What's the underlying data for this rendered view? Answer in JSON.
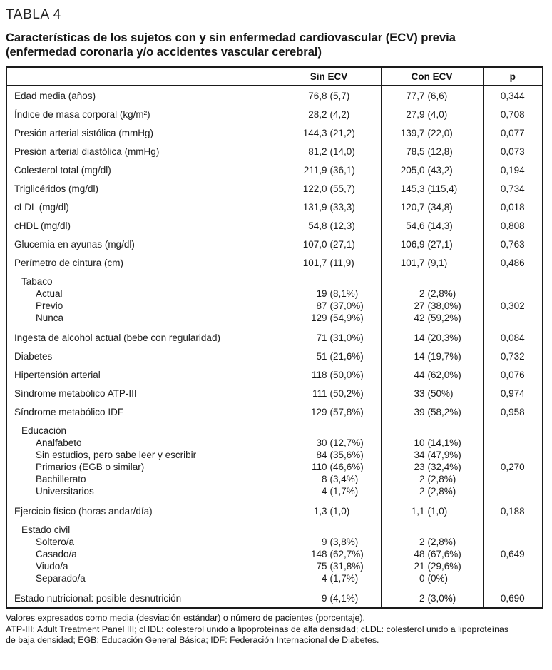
{
  "page": {
    "kicker": "TABLA 4",
    "title_line1": "Características de los sujetos con y sin enfermedad cardiovascular (ECV) previa",
    "title_line2": "(enfermedad coronaria y/o accidentes vascular cerebral)"
  },
  "table": {
    "columns": [
      "",
      "Sin ECV",
      "Con ECV",
      "p"
    ],
    "rows": [
      {
        "type": "single",
        "label": "Edad media (años)",
        "sin": "76,8 (5,7)",
        "con": "77,7 (6,6)",
        "p": "0,344"
      },
      {
        "type": "single",
        "label": "Índice de masa corporal (kg/m²)",
        "sin": "28,2 (4,2)",
        "con": "27,9 (4,0)",
        "p": "0,708"
      },
      {
        "type": "single",
        "label": "Presión arterial sistólica (mmHg)",
        "sin": "144,3 (21,2)",
        "con": "139,7 (22,0)",
        "p": "0,077"
      },
      {
        "type": "single",
        "label": "Presión arterial diastólica (mmHg)",
        "sin": "81,2 (14,0)",
        "con": "78,5 (12,8)",
        "p": "0,073"
      },
      {
        "type": "single",
        "label": "Colesterol total (mg/dl)",
        "sin": "211,9 (36,1)",
        "con": "205,0 (43,2)",
        "p": "0,194"
      },
      {
        "type": "single",
        "label": "Triglicéridos (mg/dl)",
        "sin": "122,0 (55,7)",
        "con": "145,3 (115,4)",
        "p": "0,734"
      },
      {
        "type": "single",
        "label": "cLDL (mg/dl)",
        "sin": "131,9 (33,3)",
        "con": "120,7 (34,8)",
        "p": "0,018"
      },
      {
        "type": "single",
        "label": "cHDL (mg/dl)",
        "sin": "54,8 (12,3)",
        "con": "54,6 (14,3)",
        "p": "0,808"
      },
      {
        "type": "single",
        "label": "Glucemia en ayunas (mg/dl)",
        "sin": "107,0 (27,1)",
        "con": "106,9 (27,1)",
        "p": "0,763"
      },
      {
        "type": "single",
        "label": "Perímetro de cintura (cm)",
        "sin": "101,7 (11,9)",
        "con": "101,7 (9,1)",
        "p": "0,486"
      },
      {
        "type": "group",
        "label": "Tabaco",
        "p": "0,302",
        "p_line": 1,
        "items": [
          {
            "label": "Actual",
            "sin": "19 (8,1%)",
            "con": "2 (2,8%)"
          },
          {
            "label": "Previo",
            "sin": "87 (37,0%)",
            "con": "27 (38,0%)"
          },
          {
            "label": "Nunca",
            "sin": "129 (54,9%)",
            "con": "42 (59,2%)"
          }
        ]
      },
      {
        "type": "single",
        "label": "Ingesta de alcohol actual (bebe con regularidad)",
        "sin": "71 (31,0%)",
        "con": "14 (20,3%)",
        "p": "0,084"
      },
      {
        "type": "single",
        "label": "Diabetes",
        "sin": "51 (21,6%)",
        "con": "14 (19,7%)",
        "p": "0,732"
      },
      {
        "type": "single",
        "label": "Hipertensión arterial",
        "sin": "118 (50,0%)",
        "con": "44 (62,0%)",
        "p": "0,076"
      },
      {
        "type": "single",
        "label": "Síndrome metabólico ATP-III",
        "sin": "111 (50,2%)",
        "con": "33 (50%)",
        "p": "0,974"
      },
      {
        "type": "single",
        "label": "Síndrome metabólico IDF",
        "sin": "129 (57,8%)",
        "con": "39 (58,2%)",
        "p": "0,958"
      },
      {
        "type": "group",
        "label": "Educación",
        "p": "0,270",
        "p_line": 2,
        "items": [
          {
            "label": "Analfabeto",
            "sin": "30 (12,7%)",
            "con": "10 (14,1%)"
          },
          {
            "label": "Sin estudios, pero sabe leer y escribir",
            "sin": "84 (35,6%)",
            "con": "34 (47,9%)"
          },
          {
            "label": "Primarios (EGB o similar)",
            "sin": "110 (46,6%)",
            "con": "23 (32,4%)"
          },
          {
            "label": "Bachillerato",
            "sin": "8 (3,4%)",
            "con": "2 (2,8%)"
          },
          {
            "label": "Universitarios",
            "sin": "4 (1,7%)",
            "con": "2 (2,8%)"
          }
        ]
      },
      {
        "type": "single",
        "label": "Ejercicio físico (horas andar/día)",
        "sin": "1,3 (1,0)",
        "con": "1,1 (1,0)",
        "p": "0,188"
      },
      {
        "type": "group",
        "label": "Estado civil",
        "p": "0,649",
        "p_line": 1,
        "items": [
          {
            "label": "Soltero/a",
            "sin": "9 (3,8%)",
            "con": "2 (2,8%)"
          },
          {
            "label": "Casado/a",
            "sin": "148 (62,7%)",
            "con": "48 (67,6%)"
          },
          {
            "label": "Viudo/a",
            "sin": "75 (31,8%)",
            "con": "21 (29,6%)"
          },
          {
            "label": "Separado/a",
            "sin": "4 (1,7%)",
            "con": "0 (0%)"
          }
        ]
      },
      {
        "type": "single",
        "label": "Estado nutricional: posible desnutrición",
        "sin": "9 (4,1%)",
        "con": "2 (3,0%)",
        "p": "0,690"
      }
    ]
  },
  "footnotes": [
    "Valores expresados como media (desviación estándar) o número de pacientes (porcentaje).",
    "ATP-III: Adult Treatment Panel III; cHDL: colesterol unido a lipoproteínas de alta densidad; cLDL: colesterol unido a lipoproteínas",
    "de baja densidad; EGB: Educación General Básica; IDF: Federación Internacional de Diabetes."
  ]
}
